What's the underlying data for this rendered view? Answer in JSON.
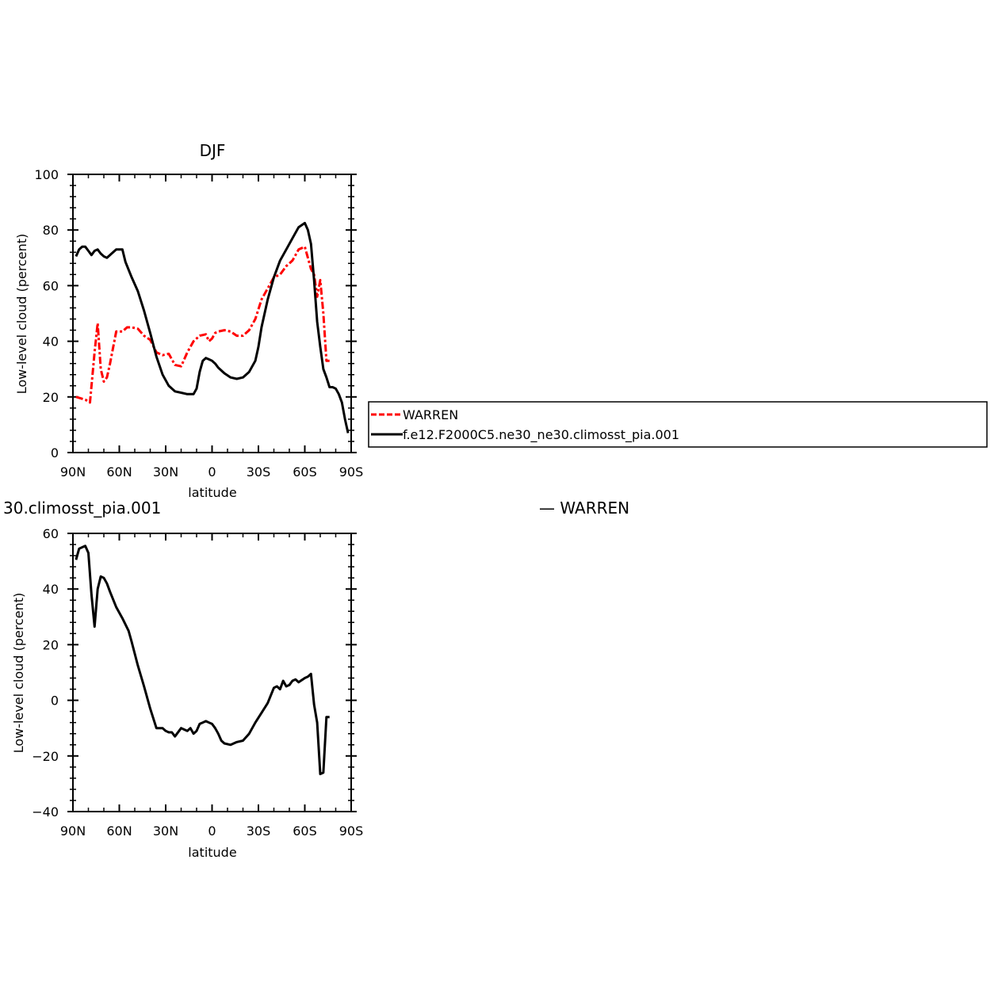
{
  "chart_data": [
    {
      "type": "line",
      "title": "DJF",
      "xlabel": "latitude",
      "ylabel": "Low-level cloud (percent)",
      "xlim": [
        90,
        -90
      ],
      "ylim": [
        0,
        100
      ],
      "x_ticks": [
        90,
        60,
        30,
        0,
        -30,
        -60,
        -90
      ],
      "x_tick_labels": [
        "90N",
        "60N",
        "30N",
        "0",
        "30S",
        "60S",
        "90S"
      ],
      "y_ticks": [
        0,
        20,
        40,
        60,
        80,
        100
      ],
      "y_tick_labels": [
        "0",
        "20",
        "40",
        "60",
        "80",
        "100"
      ],
      "grid": false,
      "legend": "right",
      "series": [
        {
          "name": "WARREN",
          "color": "#ff0000",
          "style": "dashed",
          "x": [
            88,
            85,
            82,
            79,
            76,
            74,
            72,
            70,
            68,
            66,
            62,
            58,
            55,
            52,
            48,
            44,
            40,
            36,
            32,
            28,
            24,
            20,
            16,
            12,
            8,
            4,
            2,
            0,
            -2,
            -4,
            -8,
            -12,
            -16,
            -20,
            -24,
            -28,
            -32,
            -36,
            -40,
            -44,
            -48,
            -52,
            -56,
            -60,
            -62,
            -64,
            -66,
            -68,
            -70,
            -72,
            -74,
            -76
          ],
          "values": [
            20,
            19.5,
            19,
            18,
            36,
            46.5,
            30,
            25.5,
            27,
            32,
            43.5,
            43.5,
            45,
            45,
            44.5,
            42,
            40.5,
            36,
            35,
            35.5,
            31.5,
            31,
            36,
            40,
            42,
            42.5,
            40,
            41,
            43,
            43.5,
            44,
            43.5,
            42,
            42,
            44,
            48,
            55,
            59,
            63,
            64,
            67,
            69,
            73,
            74,
            70,
            66,
            64,
            56,
            62,
            50,
            33,
            33
          ]
        },
        {
          "name": "f.e12.F2000C5.ne30_ne30.climosst_pia.001",
          "color": "#000000",
          "style": "solid",
          "x": [
            88,
            86,
            84,
            82,
            80,
            78,
            76,
            74,
            72,
            70,
            68,
            66,
            62,
            58,
            56,
            52,
            48,
            44,
            40,
            36,
            32,
            28,
            24,
            20,
            16,
            12,
            10,
            8,
            6,
            4,
            2,
            0,
            -2,
            -4,
            -8,
            -12,
            -16,
            -20,
            -24,
            -28,
            -30,
            -32,
            -36,
            -40,
            -44,
            -48,
            -52,
            -56,
            -60,
            -62,
            -64,
            -66,
            -68,
            -70,
            -72,
            -74,
            -76,
            -78,
            -80,
            -82,
            -84,
            -86,
            -88
          ],
          "values": [
            70.5,
            73,
            74,
            74,
            72.5,
            71,
            72.5,
            73,
            71.5,
            70.5,
            70,
            71,
            73,
            73,
            68.5,
            63,
            58,
            51,
            43,
            34.5,
            28,
            24,
            22,
            21.5,
            21,
            21,
            23,
            29,
            33,
            34,
            33.5,
            33,
            32,
            30.5,
            28.5,
            27,
            26.5,
            27,
            29,
            33,
            38,
            45,
            55,
            63,
            69,
            73,
            77,
            81,
            82.5,
            80,
            75,
            62,
            47,
            38,
            30,
            27,
            23.5,
            23.5,
            23,
            21,
            18,
            12,
            7
          ]
        }
      ]
    },
    {
      "type": "line",
      "title": "30.climosst_pia.001",
      "title_right": "— WARREN",
      "xlabel": "latitude",
      "ylabel": "Low-level cloud (percent)",
      "xlim": [
        90,
        -90
      ],
      "ylim": [
        -40,
        60
      ],
      "x_ticks": [
        90,
        60,
        30,
        0,
        -30,
        -60,
        -90
      ],
      "x_tick_labels": [
        "90N",
        "60N",
        "30N",
        "0",
        "30S",
        "60S",
        "90S"
      ],
      "y_ticks": [
        -40,
        -20,
        0,
        20,
        40,
        60
      ],
      "y_tick_labels": [
        "−40",
        "−20",
        "0",
        "20",
        "40",
        "60"
      ],
      "grid": false,
      "series": [
        {
          "color": "#000000",
          "style": "solid",
          "x": [
            88,
            86,
            84,
            82,
            80,
            78,
            76,
            74,
            72,
            70,
            68,
            66,
            62,
            58,
            54,
            52,
            48,
            44,
            40,
            36,
            32,
            30,
            28,
            26,
            24,
            20,
            18,
            16,
            14,
            12,
            10,
            8,
            4,
            2,
            0,
            -2,
            -4,
            -6,
            -8,
            -12,
            -16,
            -20,
            -24,
            -28,
            -32,
            -36,
            -40,
            -42,
            -44,
            -46,
            -48,
            -50,
            -52,
            -54,
            -56,
            -60,
            -62,
            -64,
            -66,
            -68,
            -70,
            -72,
            -74,
            -76
          ],
          "values": [
            50.5,
            54.5,
            55,
            55.5,
            53,
            38,
            26.5,
            40,
            44.5,
            44,
            42,
            39,
            33.5,
            29.5,
            25,
            21,
            12.5,
            5,
            -3,
            -10,
            -10,
            -11,
            -11.5,
            -11.5,
            -13,
            -10,
            -10.5,
            -11,
            -10,
            -12,
            -11,
            -8.5,
            -7.5,
            -8,
            -8.5,
            -10,
            -12,
            -14.5,
            -15.5,
            -16,
            -15,
            -14.5,
            -12,
            -8,
            -4.5,
            -1,
            4.5,
            5,
            4,
            7,
            5,
            5.5,
            7,
            7.5,
            6.5,
            8,
            8.5,
            9.5,
            -1.5,
            -8,
            -26.5,
            -26,
            -6,
            -6
          ]
        }
      ]
    }
  ],
  "legend": {
    "entries": [
      {
        "label": "WARREN",
        "color": "#ff0000",
        "style": "dashed"
      },
      {
        "label": "f.e12.F2000C5.ne30_ne30.climosst_pia.001",
        "color": "#000000",
        "style": "solid"
      }
    ]
  }
}
